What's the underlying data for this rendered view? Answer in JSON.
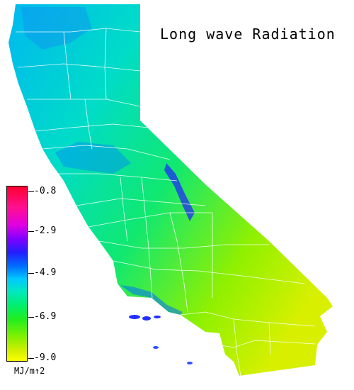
{
  "title": "Long wave Radiation",
  "legend": {
    "ticks": [
      "-0.8",
      "-2.9",
      "-4.9",
      "-6.9",
      "-9.0"
    ],
    "units": "MJ/m↑2"
  },
  "colors": {
    "background": "#ffffff",
    "county_lines": "#ffffff",
    "high": "#ff0030",
    "mid_high": "#8000ff",
    "mid": "#00c8ff",
    "mid_low": "#20ee20",
    "low": "#ffff00"
  }
}
